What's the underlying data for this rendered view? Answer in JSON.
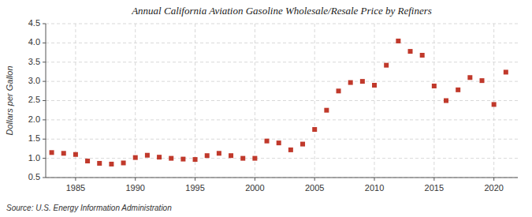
{
  "chart_data": {
    "type": "scatter",
    "title": "Annual California Aviation Gasoline Wholesale/Resale Price by Refiners",
    "ylabel": "Dollars per Gallon",
    "annotation": "Source: U.S. Energy Information Administration",
    "x": [
      1983,
      1984,
      1985,
      1986,
      1987,
      1988,
      1989,
      1990,
      1991,
      1992,
      1993,
      1994,
      1995,
      1996,
      1997,
      1998,
      1999,
      2000,
      2001,
      2002,
      2003,
      2004,
      2005,
      2006,
      2007,
      2008,
      2009,
      2010,
      2011,
      2012,
      2013,
      2014,
      2015,
      2016,
      2017,
      2018,
      2019,
      2020,
      2021
    ],
    "values": [
      1.15,
      1.13,
      1.1,
      0.93,
      0.87,
      0.85,
      0.88,
      1.02,
      1.08,
      1.03,
      1.0,
      0.98,
      0.97,
      1.07,
      1.13,
      1.07,
      1.0,
      1.0,
      1.45,
      1.4,
      1.22,
      1.37,
      1.75,
      2.25,
      2.75,
      2.97,
      3.0,
      2.9,
      3.42,
      4.05,
      3.78,
      3.68,
      2.88,
      2.5,
      2.78,
      3.1,
      3.02,
      2.4,
      3.24
    ],
    "color": "#c0392b",
    "marker": "square",
    "xlim": [
      1982.5,
      2022
    ],
    "ylim": [
      0.5,
      4.5
    ],
    "xticks": [
      1985,
      1990,
      1995,
      2000,
      2005,
      2010,
      2015,
      2020
    ],
    "yticks": [
      0.5,
      {
        "value": 1.0,
        "label": "1.0"
      },
      1.5,
      {
        "value": 2.0,
        "label": "2.0"
      },
      2.5,
      {
        "value": 3.0,
        "label": "3.0"
      },
      3.5,
      {
        "value": 4.0,
        "label": "4.0"
      },
      4.5
    ],
    "grid": true
  }
}
